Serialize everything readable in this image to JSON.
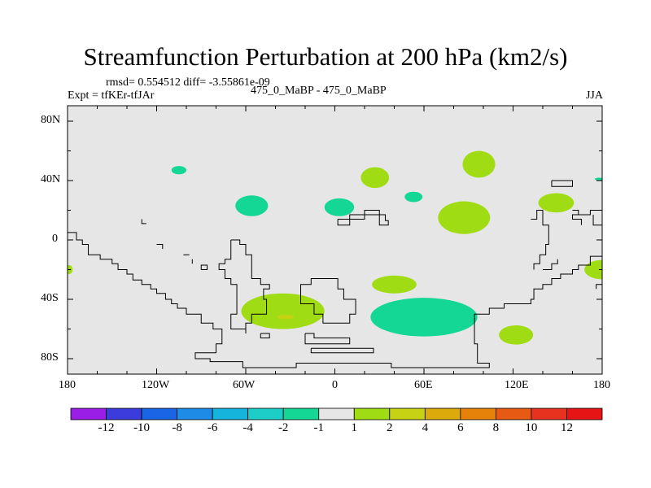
{
  "title": "Streamfunction Perturbation at 200 hPa (km2/s)",
  "stats": "rmsd= 0.554512 diff= -3.55861e-09",
  "experiment": "Expt = tfKEr-tfJAr",
  "center_label": "475_0_MaBP - 475_0_MaBP",
  "season": "JJA",
  "lat_ticks": [
    "80N",
    "40N",
    "0",
    "40S",
    "80S"
  ],
  "lon_ticks": [
    "180",
    "120W",
    "60W",
    "0",
    "60E",
    "120E",
    "180"
  ],
  "colorbar": {
    "labels": [
      "-12",
      "-10",
      "-8",
      "-6",
      "-4",
      "-2",
      "-1",
      "1",
      "2",
      "4",
      "6",
      "8",
      "10",
      "12"
    ],
    "colors": [
      "#9a1ee6",
      "#3c3cdc",
      "#1a64e6",
      "#1e8ce6",
      "#14b4dc",
      "#1ccdc8",
      "#14d796",
      "#e6e6e6",
      "#a0dc14",
      "#c8d214",
      "#dcaa0a",
      "#e6820a",
      "#e65a14",
      "#e6321e",
      "#e61414"
    ]
  },
  "map": {
    "background": "#e6e6e6",
    "anomalies": [
      {
        "level": "-2",
        "color": "#14d796",
        "lon": -105,
        "lat": 47,
        "rlon": 5,
        "rlat": 2.8
      },
      {
        "level": "-2",
        "color": "#14d796",
        "lon": -56,
        "lat": 23,
        "rlon": 11,
        "rlat": 7
      },
      {
        "level": "-2",
        "color": "#14d796",
        "lon": 3,
        "lat": 22,
        "rlon": 10,
        "rlat": 6
      },
      {
        "level": "-2",
        "color": "#14d796",
        "lon": 53,
        "lat": 29,
        "rlon": 6,
        "rlat": 3.5
      },
      {
        "level": "-2",
        "color": "#14d796",
        "lon": 60,
        "lat": -52,
        "rlon": 36,
        "rlat": 13
      },
      {
        "level": "-2",
        "color": "#14d796",
        "lon": 178,
        "lat": 41,
        "rlon": 3,
        "rlat": 1
      },
      {
        "level": "2",
        "color": "#a0dc14",
        "lon": 27,
        "lat": 42,
        "rlon": 9.5,
        "rlat": 7
      },
      {
        "level": "2",
        "color": "#a0dc14",
        "lon": 97,
        "lat": 51,
        "rlon": 11,
        "rlat": 9
      },
      {
        "level": "2",
        "color": "#a0dc14",
        "lon": 87,
        "lat": 15,
        "rlon": 17.5,
        "rlat": 11
      },
      {
        "level": "2",
        "color": "#a0dc14",
        "lon": 149,
        "lat": 25,
        "rlon": 12,
        "rlat": 6.5
      },
      {
        "level": "2",
        "color": "#a0dc14",
        "lon": 180,
        "lat": -20,
        "rlon": 12,
        "rlat": 6.5
      },
      {
        "level": "2",
        "color": "#a0dc14",
        "lon": -179,
        "lat": -20,
        "rlon": 2.5,
        "rlat": 3
      },
      {
        "level": "2",
        "color": "#a0dc14",
        "lon": 40,
        "lat": -30,
        "rlon": 15,
        "rlat": 6
      },
      {
        "level": "2",
        "color": "#a0dc14",
        "lon": -35,
        "lat": -48,
        "rlon": 28,
        "rlat": 12
      },
      {
        "level": "2",
        "color": "#a0dc14",
        "lon": 122,
        "lat": -64,
        "rlon": 11.5,
        "rlat": 6.5
      },
      {
        "level": "4",
        "color": "#c8d214",
        "lon": -33,
        "lat": -52,
        "rlon": 5.5,
        "rlat": 1.4
      }
    ],
    "coastlines": [
      [
        [
          -180,
          5
        ],
        [
          -174,
          5
        ],
        [
          -174,
          0
        ],
        [
          -170,
          0
        ],
        [
          -170,
          -3
        ],
        [
          -166,
          -3
        ],
        [
          -166,
          -10
        ],
        [
          -158,
          -10
        ],
        [
          -158,
          -13
        ],
        [
          -150,
          -13
        ],
        [
          -150,
          -16
        ],
        [
          -146,
          -16
        ],
        [
          -146,
          -20
        ],
        [
          -140,
          -20
        ],
        [
          -140,
          -23
        ],
        [
          -136,
          -23
        ],
        [
          -136,
          -27
        ],
        [
          -130,
          -27
        ],
        [
          -130,
          -30
        ],
        [
          -124,
          -30
        ],
        [
          -124,
          -33
        ],
        [
          -120,
          -33
        ],
        [
          -120,
          -36
        ],
        [
          -114,
          -36
        ],
        [
          -114,
          -40
        ],
        [
          -110,
          -40
        ],
        [
          -110,
          -43
        ],
        [
          -106,
          -43
        ],
        [
          -106,
          -46
        ],
        [
          -100,
          -46
        ],
        [
          -100,
          -50
        ],
        [
          -90,
          -50
        ],
        [
          -90,
          -56
        ],
        [
          -82,
          -56
        ],
        [
          -82,
          -60
        ],
        [
          -76,
          -60
        ],
        [
          -76,
          -70
        ],
        [
          -80,
          -70
        ],
        [
          -80,
          -76
        ],
        [
          -94,
          -76
        ],
        [
          -94,
          -80
        ],
        [
          -84,
          -80
        ],
        [
          -84,
          -82
        ],
        [
          -62,
          -82
        ],
        [
          -62,
          -86
        ],
        [
          -26,
          -86
        ],
        [
          -26,
          -83
        ],
        [
          38,
          -83
        ],
        [
          38,
          -86
        ],
        [
          104,
          -86
        ],
        [
          104,
          -83
        ],
        [
          96,
          -83
        ],
        [
          96,
          -70
        ],
        [
          94,
          -70
        ],
        [
          94,
          -50
        ],
        [
          104,
          -50
        ],
        [
          104,
          -46
        ],
        [
          114,
          -46
        ],
        [
          114,
          -43
        ],
        [
          132,
          -43
        ],
        [
          132,
          -40
        ],
        [
          134,
          -40
        ],
        [
          134,
          -33
        ],
        [
          140,
          -33
        ],
        [
          140,
          -30
        ],
        [
          146,
          -30
        ],
        [
          146,
          -26
        ],
        [
          152,
          -26
        ],
        [
          152,
          -23
        ],
        [
          160,
          -23
        ],
        [
          160,
          -20
        ],
        [
          164,
          -20
        ],
        [
          164,
          -17
        ],
        [
          172,
          -17
        ],
        [
          172,
          -11
        ],
        [
          180,
          -11
        ]
      ],
      [
        [
          -70,
          0
        ],
        [
          -64,
          0
        ],
        [
          -64,
          -3
        ],
        [
          -60,
          -3
        ],
        [
          -60,
          -10
        ],
        [
          -56,
          -10
        ],
        [
          -56,
          -26
        ],
        [
          -50,
          -26
        ],
        [
          -50,
          -30
        ],
        [
          -44,
          -30
        ],
        [
          -44,
          -33
        ],
        [
          -48,
          -33
        ],
        [
          -48,
          -40
        ],
        [
          -46,
          -40
        ],
        [
          -46,
          -50
        ],
        [
          -56,
          -50
        ],
        [
          -56,
          -56
        ],
        [
          -60,
          -56
        ],
        [
          -60,
          -60
        ],
        [
          -70,
          -60
        ],
        [
          -70,
          -50
        ],
        [
          -66,
          -50
        ],
        [
          -66,
          -30
        ],
        [
          -70,
          -30
        ],
        [
          -70,
          -26
        ],
        [
          -74,
          -26
        ],
        [
          -74,
          -20
        ],
        [
          -78,
          -20
        ],
        [
          -78,
          -16
        ],
        [
          -74,
          -16
        ],
        [
          -74,
          -13
        ],
        [
          -70,
          -13
        ],
        [
          -70,
          0
        ]
      ],
      [
        [
          -23,
          -36
        ],
        [
          -23,
          -30
        ],
        [
          -16,
          -30
        ],
        [
          -16,
          -26
        ],
        [
          2,
          -26
        ],
        [
          2,
          -33
        ],
        [
          6,
          -33
        ],
        [
          6,
          -40
        ],
        [
          14,
          -40
        ],
        [
          14,
          -50
        ],
        [
          10,
          -50
        ],
        [
          10,
          -56
        ],
        [
          -8,
          -56
        ],
        [
          -8,
          -50
        ],
        [
          -14,
          -50
        ],
        [
          -14,
          -43
        ],
        [
          -23,
          -43
        ],
        [
          -23,
          -36
        ]
      ],
      [
        [
          2,
          14
        ],
        [
          2,
          10
        ],
        [
          10,
          10
        ],
        [
          10,
          14
        ],
        [
          20,
          14
        ],
        [
          20,
          17
        ],
        [
          30,
          17
        ],
        [
          30,
          10
        ],
        [
          36,
          10
        ],
        [
          36,
          13
        ],
        [
          34,
          13
        ],
        [
          34,
          17
        ],
        [
          30,
          17
        ],
        [
          30,
          20
        ],
        [
          20,
          20
        ],
        [
          20,
          17
        ],
        [
          10,
          17
        ],
        [
          10,
          14
        ],
        [
          2,
          14
        ]
      ],
      [
        [
          -130,
          14
        ],
        [
          -130,
          11
        ],
        [
          -127,
          11
        ]
      ],
      [
        [
          -120,
          -3
        ],
        [
          -116,
          -3
        ],
        [
          -116,
          -6
        ]
      ],
      [
        [
          -102,
          -10
        ],
        [
          -98,
          -10
        ]
      ],
      [
        [
          -90,
          -20
        ],
        [
          -86,
          -20
        ],
        [
          -86,
          -17
        ],
        [
          -90,
          -17
        ],
        [
          -90,
          -20
        ]
      ],
      [
        [
          -96,
          -16
        ],
        [
          -96,
          -13
        ]
      ],
      [
        [
          -20,
          -63
        ],
        [
          -14,
          -63
        ],
        [
          -14,
          -66
        ],
        [
          10,
          -66
        ],
        [
          10,
          -70
        ],
        [
          -20,
          -70
        ],
        [
          -20,
          -63
        ]
      ],
      [
        [
          -16,
          -73
        ],
        [
          26,
          -73
        ],
        [
          26,
          -76
        ],
        [
          -16,
          -76
        ],
        [
          -16,
          -73
        ]
      ],
      [
        [
          -50,
          -63
        ],
        [
          -50,
          -66
        ],
        [
          -44,
          -66
        ],
        [
          -44,
          -63
        ],
        [
          -50,
          -63
        ]
      ],
      [
        [
          -64,
          -60
        ],
        [
          -60,
          -60
        ],
        [
          -60,
          -63
        ]
      ],
      [
        [
          146,
          40
        ],
        [
          160,
          40
        ],
        [
          160,
          36
        ],
        [
          146,
          36
        ],
        [
          146,
          40
        ]
      ],
      [
        [
          132,
          14
        ],
        [
          136,
          14
        ],
        [
          136,
          20
        ],
        [
          140,
          20
        ],
        [
          140,
          10
        ],
        [
          144,
          10
        ],
        [
          144,
          -3
        ],
        [
          142,
          -3
        ],
        [
          142,
          -10
        ],
        [
          138,
          -10
        ],
        [
          138,
          -16
        ],
        [
          134,
          -16
        ],
        [
          134,
          -20
        ]
      ],
      [
        [
          140,
          -20
        ],
        [
          146,
          -20
        ],
        [
          146,
          -16
        ],
        [
          150,
          -16
        ],
        [
          150,
          -13
        ]
      ],
      [
        [
          160,
          20
        ],
        [
          164,
          20
        ],
        [
          164,
          17
        ],
        [
          172,
          17
        ],
        [
          172,
          20
        ],
        [
          178,
          20
        ],
        [
          180,
          20
        ]
      ],
      [
        [
          164,
          17
        ],
        [
          160,
          17
        ],
        [
          160,
          14
        ],
        [
          166,
          14
        ],
        [
          166,
          10
        ]
      ],
      [
        [
          174,
          17
        ],
        [
          174,
          10
        ],
        [
          180,
          10
        ]
      ],
      [
        [
          180,
          -30
        ],
        [
          176,
          -30
        ],
        [
          176,
          -33
        ]
      ]
    ]
  }
}
